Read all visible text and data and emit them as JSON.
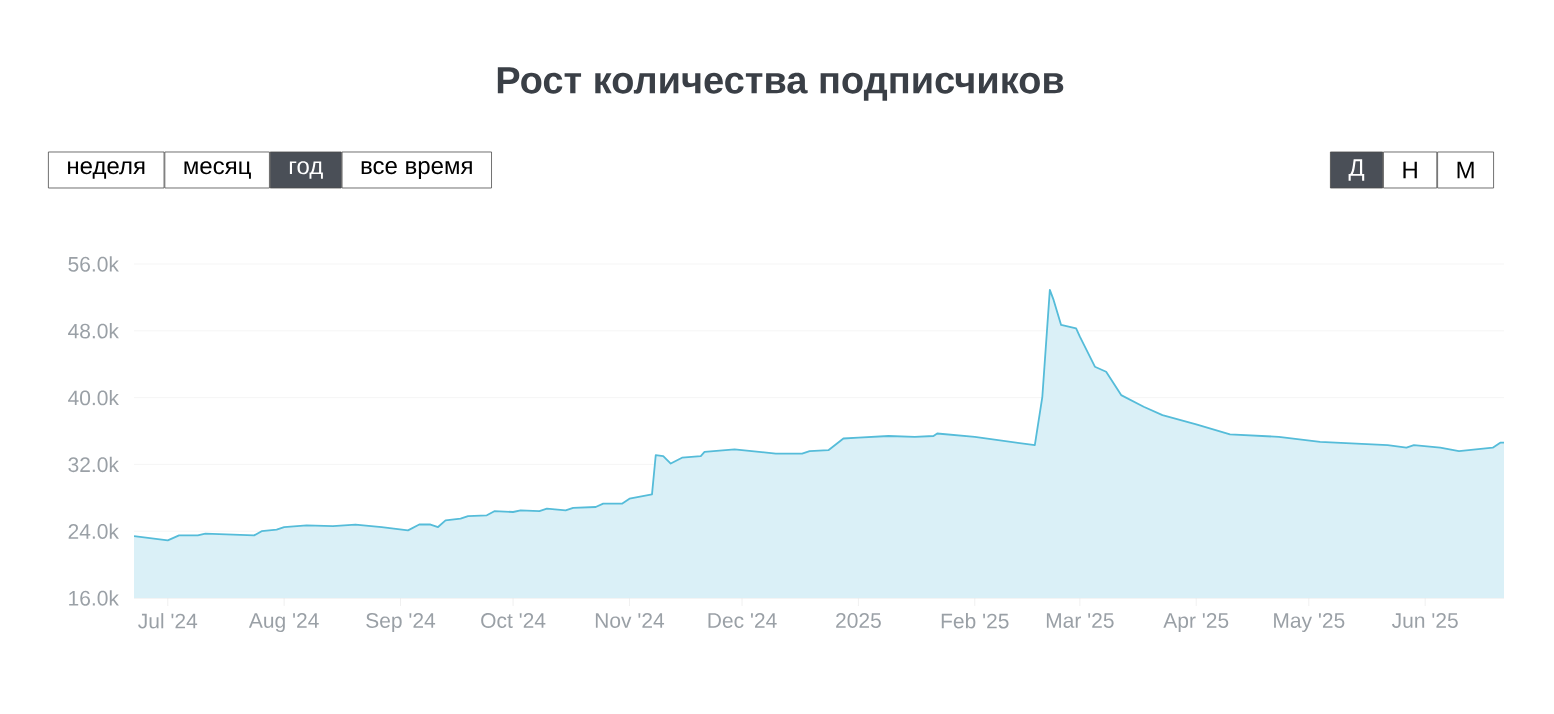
{
  "chart_data": {
    "type": "area",
    "title": "Рост количества подписчиков",
    "annotations": [
      "неделя",
      "месяц",
      "год",
      "все время",
      "Д",
      "Н",
      "М"
    ],
    "x": [
      "2024-06-22",
      "2024-07-01",
      "2024-07-04",
      "2024-07-09",
      "2024-07-11",
      "2024-07-24",
      "2024-07-26",
      "2024-07-30",
      "2024-08-01",
      "2024-08-07",
      "2024-08-14",
      "2024-08-20",
      "2024-08-27",
      "2024-09-03",
      "2024-09-06",
      "2024-09-09",
      "2024-09-11",
      "2024-09-13",
      "2024-09-17",
      "2024-09-19",
      "2024-09-24",
      "2024-09-26",
      "2024-10-01",
      "2024-10-03",
      "2024-10-08",
      "2024-10-10",
      "2024-10-15",
      "2024-10-17",
      "2024-10-23",
      "2024-10-25",
      "2024-10-30",
      "2024-11-01",
      "2024-11-07",
      "2024-11-08",
      "2024-11-10",
      "2024-11-12",
      "2024-11-15",
      "2024-11-20",
      "2024-11-21",
      "2024-11-29",
      "2024-12-10",
      "2024-12-17",
      "2024-12-19",
      "2024-12-24",
      "2024-12-28",
      "2025-01-01",
      "2025-01-09",
      "2025-01-16",
      "2025-01-21",
      "2025-01-22",
      "2025-02-01",
      "2025-02-17",
      "2025-02-19",
      "2025-02-21",
      "2025-02-22",
      "2025-02-24",
      "2025-02-28",
      "2025-03-01",
      "2025-03-05",
      "2025-03-08",
      "2025-03-12",
      "2025-03-18",
      "2025-03-23",
      "2025-04-01",
      "2025-04-10",
      "2025-04-23",
      "2025-05-04",
      "2025-05-22",
      "2025-05-27",
      "2025-05-29",
      "2025-06-05",
      "2025-06-10",
      "2025-06-19",
      "2025-06-21",
      "2025-06-22"
    ],
    "series": [
      {
        "color": "#55bcd9",
        "values": [
          23400,
          22900,
          23500,
          23500,
          23700,
          23500,
          24000,
          24200,
          24500,
          24700,
          24600,
          24800,
          24500,
          24100,
          24800,
          24800,
          24500,
          25300,
          25500,
          25800,
          25900,
          26400,
          26300,
          26500,
          26400,
          26700,
          26500,
          26800,
          26900,
          27300,
          27300,
          27900,
          28400,
          33100,
          33000,
          32100,
          32800,
          33000,
          33500,
          33800,
          33300,
          33300,
          33600,
          33700,
          35100,
          35200,
          35400,
          35300,
          35400,
          35700,
          35300,
          34300,
          40100,
          52900,
          51700,
          48700,
          48300,
          47300,
          43700,
          43100,
          40300,
          38900,
          37900,
          36800,
          35600,
          35300,
          34700,
          34300,
          34000,
          34300,
          34000,
          33600,
          34000,
          34600,
          34600
        ]
      }
    ],
    "xlim": [
      "2024-06-22",
      "2025-06-22"
    ],
    "xticks": [
      {
        "value": "2024-07-01",
        "label": "Jul '24"
      },
      {
        "value": "2024-08-01",
        "label": "Aug '24"
      },
      {
        "value": "2024-09-01",
        "label": "Sep '24"
      },
      {
        "value": "2024-10-01",
        "label": "Oct '24"
      },
      {
        "value": "2024-11-01",
        "label": "Nov '24"
      },
      {
        "value": "2024-12-01",
        "label": "Dec '24"
      },
      {
        "value": "2025-01-01",
        "label": "2025"
      },
      {
        "value": "2025-02-01",
        "label": "Feb '25"
      },
      {
        "value": "2025-03-01",
        "label": "Mar '25"
      },
      {
        "value": "2025-04-01",
        "label": "Apr '25"
      },
      {
        "value": "2025-05-01",
        "label": "May '25"
      },
      {
        "value": "2025-06-01",
        "label": "Jun '25"
      }
    ],
    "ylim": [
      16000,
      56000
    ],
    "yticks": [
      {
        "value": 16000,
        "label": "16.0k"
      },
      {
        "value": 24000,
        "label": "24.0k"
      },
      {
        "value": 32000,
        "label": "32.0k"
      },
      {
        "value": 40000,
        "label": "40.0k"
      },
      {
        "value": 48000,
        "label": "48.0k"
      },
      {
        "value": 56000,
        "label": "56.0k"
      }
    ],
    "grid": "y",
    "marker": "none",
    "line_style": "solid"
  }
}
